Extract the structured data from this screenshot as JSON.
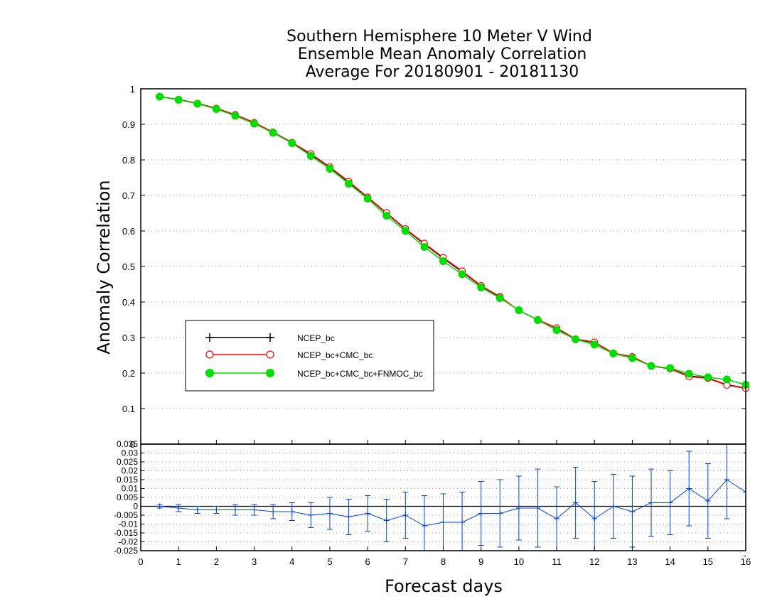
{
  "chart_data": {
    "type": "line",
    "title_lines": [
      "Southern Hemisphere 10 Meter V Wind",
      "Ensemble Mean Anomaly Correlation",
      "Average For 20180901 - 20181130"
    ],
    "xlabel": "Forecast days",
    "ylabel": "Anomaly Correlation",
    "xlim": [
      0,
      16
    ],
    "x_ticks": [
      "0",
      "1",
      "2",
      "3",
      "4",
      "5",
      "6",
      "7",
      "8",
      "9",
      "10",
      "11",
      "12",
      "13",
      "14",
      "15",
      "16"
    ],
    "main_panel": {
      "ylim": [
        0,
        1
      ],
      "y_ticks": [
        "0",
        "0.1",
        "0.2",
        "0.3",
        "0.4",
        "0.5",
        "0.6",
        "0.7",
        "0.8",
        "0.9",
        "1"
      ],
      "grid": "horizontal dotted",
      "legend_position": "lower-left",
      "x": [
        0.5,
        1,
        1.5,
        2,
        2.5,
        3,
        3.5,
        4,
        4.5,
        5,
        5.5,
        6,
        6.5,
        7,
        7.5,
        8,
        8.5,
        9,
        9.5,
        10,
        10.5,
        11,
        11.5,
        12,
        12.5,
        13,
        13.5,
        14,
        14.5,
        15,
        15.5,
        16
      ],
      "series": [
        {
          "name": "NCEP_bc",
          "color": "#000000",
          "marker": "plus",
          "values": [
            0.978,
            0.97,
            0.959,
            0.945,
            0.927,
            0.905,
            0.878,
            0.849,
            0.815,
            0.779,
            0.737,
            0.694,
            0.65,
            0.605,
            0.563,
            0.523,
            0.485,
            0.445,
            0.414,
            0.376,
            0.35,
            0.326,
            0.295,
            0.286,
            0.256,
            0.245,
            0.22,
            0.212,
            0.192,
            0.186,
            0.167,
            0.158
          ]
        },
        {
          "name": "NCEP_bc+CMC_bc",
          "color": "#ff0000",
          "marker": "open-circle",
          "values": [
            0.978,
            0.97,
            0.959,
            0.945,
            0.927,
            0.905,
            0.878,
            0.849,
            0.817,
            0.78,
            0.739,
            0.695,
            0.651,
            0.606,
            0.565,
            0.525,
            0.487,
            0.446,
            0.415,
            0.376,
            0.35,
            0.327,
            0.296,
            0.287,
            0.256,
            0.246,
            0.22,
            0.212,
            0.19,
            0.185,
            0.166,
            0.157
          ]
        },
        {
          "name": "NCEP_bc+CMC_bc+FNMOC_bc",
          "color": "#00dd00",
          "marker": "filled-circle",
          "values": [
            0.978,
            0.969,
            0.958,
            0.943,
            0.924,
            0.902,
            0.876,
            0.847,
            0.811,
            0.775,
            0.733,
            0.691,
            0.643,
            0.6,
            0.555,
            0.515,
            0.478,
            0.441,
            0.411,
            0.377,
            0.349,
            0.321,
            0.295,
            0.28,
            0.255,
            0.242,
            0.22,
            0.214,
            0.198,
            0.188,
            0.182,
            0.167
          ]
        }
      ]
    },
    "difference_panel": {
      "ylim": [
        -0.025,
        0.035
      ],
      "y_ticks": [
        "-0.025",
        "-0.02",
        "-0.015",
        "-0.01",
        "-0.005",
        "0",
        "0.005",
        "0.01",
        "0.015",
        "0.02",
        "0.025",
        "0.03",
        "0.035"
      ],
      "grid": "horizontal dotted",
      "zero_line": true,
      "series": [
        {
          "color": "#0044dd",
          "marker": "plus",
          "error_bars": true,
          "values": [
            0.0,
            -0.001,
            -0.002,
            -0.002,
            -0.002,
            -0.002,
            -0.003,
            -0.003,
            -0.005,
            -0.004,
            -0.006,
            -0.004,
            -0.008,
            -0.005,
            -0.011,
            -0.009,
            -0.009,
            -0.004,
            -0.004,
            -0.001,
            -0.001,
            -0.007,
            0.002,
            -0.007,
            0.0,
            -0.003,
            0.002,
            0.002,
            0.01,
            0.003,
            0.015,
            0.008
          ],
          "err": [
            0.001,
            0.002,
            0.002,
            0.002,
            0.003,
            0.003,
            0.004,
            0.005,
            0.007,
            0.009,
            0.01,
            0.01,
            0.012,
            0.013,
            0.017,
            0.016,
            0.017,
            0.018,
            0.019,
            0.018,
            0.022,
            0.018,
            0.02,
            0.021,
            0.018,
            0.02,
            0.019,
            0.018,
            0.021,
            0.021,
            0.022,
            0.0
          ]
        }
      ]
    }
  }
}
